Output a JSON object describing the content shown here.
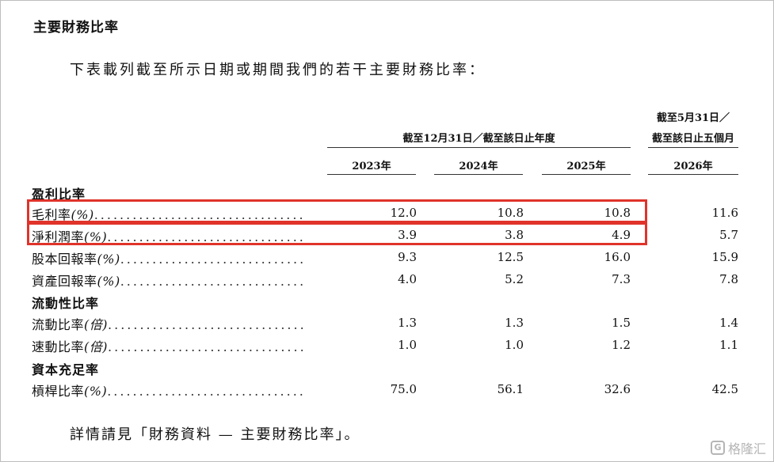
{
  "section_title": "主要財務比率",
  "intro": "下表載列截至所示日期或期間我們的若干主要財務比率：",
  "header": {
    "group_label": "截至12月31日／截至該日止年度",
    "last_label_line1": "截至5月31日／",
    "last_label_line2": "截至該日止五個月",
    "years": [
      "2023年",
      "2024年",
      "2025年",
      "2026年"
    ]
  },
  "groups": [
    {
      "title": "盈利比率",
      "rows": [
        {
          "label": "毛利率",
          "unit": "(%)",
          "values": [
            "12.0",
            "10.8",
            "10.8",
            "11.6"
          ]
        },
        {
          "label": "淨利潤率",
          "unit": "(%)",
          "values": [
            "3.9",
            "3.8",
            "4.9",
            "5.7"
          ]
        },
        {
          "label": "股本回報率",
          "unit": "(%)",
          "values": [
            "9.3",
            "12.5",
            "16.0",
            "15.9"
          ]
        },
        {
          "label": "資產回報率",
          "unit": "(%)",
          "values": [
            "4.0",
            "5.2",
            "7.3",
            "7.8"
          ]
        }
      ]
    },
    {
      "title": "流動性比率",
      "rows": [
        {
          "label": "流動比率",
          "unit": "(倍)",
          "values": [
            "1.3",
            "1.3",
            "1.5",
            "1.4"
          ]
        },
        {
          "label": "速動比率",
          "unit": "(倍)",
          "values": [
            "1.0",
            "1.0",
            "1.2",
            "1.1"
          ]
        }
      ]
    },
    {
      "title": "資本充足率",
      "rows": [
        {
          "label": "槓桿比率",
          "unit": "(%)",
          "values": [
            "75.0",
            "56.1",
            "32.6",
            "42.5"
          ]
        }
      ]
    }
  ],
  "dots": "...................................",
  "footer": "詳情請見「財務資料 — 主要財務比率」。",
  "watermark": {
    "glyph": "G",
    "text": "格隆汇"
  },
  "highlight_color": "#e0332a"
}
